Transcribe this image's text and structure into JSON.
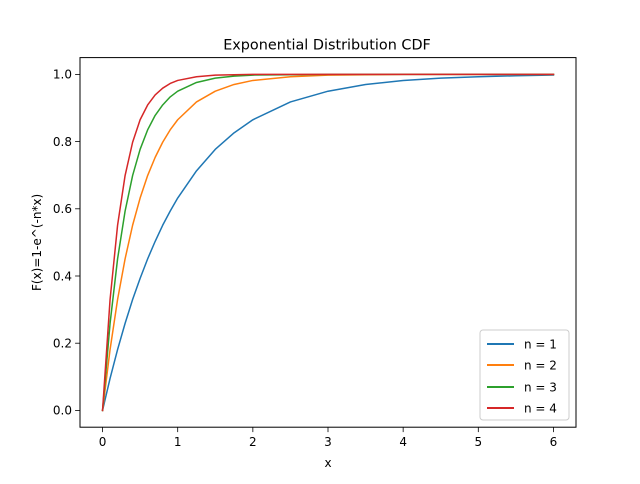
{
  "chart_data": {
    "type": "line",
    "title": "Exponential Distribution CDF",
    "xlabel": "x",
    "ylabel": "F(x)=1-e^(-n*x)",
    "xlim": [
      -0.3,
      6.3
    ],
    "ylim": [
      -0.05,
      1.05
    ],
    "xticks": [
      0,
      1,
      2,
      3,
      4,
      5,
      6
    ],
    "xtick_labels": [
      "0",
      "1",
      "2",
      "3",
      "4",
      "5",
      "6"
    ],
    "yticks": [
      0.0,
      0.2,
      0.4,
      0.6,
      0.8,
      1.0
    ],
    "ytick_labels": [
      "0.0",
      "0.2",
      "0.4",
      "0.6",
      "0.8",
      "1.0"
    ],
    "grid": false,
    "legend_position": "lower right",
    "x": [
      0,
      0.1,
      0.2,
      0.3,
      0.4,
      0.5,
      0.6,
      0.7,
      0.8,
      0.9,
      1.0,
      1.25,
      1.5,
      1.75,
      2.0,
      2.5,
      3.0,
      3.5,
      4.0,
      4.5,
      5.0,
      5.5,
      6.0
    ],
    "series": [
      {
        "name": "n = 1",
        "color": "#1f77b4",
        "values": [
          0.0,
          0.095,
          0.181,
          0.259,
          0.33,
          0.393,
          0.451,
          0.503,
          0.551,
          0.593,
          0.632,
          0.713,
          0.777,
          0.826,
          0.865,
          0.918,
          0.95,
          0.97,
          0.982,
          0.989,
          0.993,
          0.996,
          0.998
        ]
      },
      {
        "name": "n = 2",
        "color": "#ff7f0e",
        "values": [
          0.0,
          0.181,
          0.33,
          0.451,
          0.551,
          0.632,
          0.699,
          0.753,
          0.798,
          0.835,
          0.865,
          0.918,
          0.95,
          0.97,
          0.982,
          0.993,
          0.998,
          0.999,
          1.0,
          1.0,
          1.0,
          1.0,
          1.0
        ]
      },
      {
        "name": "n = 3",
        "color": "#2ca02c",
        "values": [
          0.0,
          0.259,
          0.451,
          0.593,
          0.699,
          0.777,
          0.835,
          0.878,
          0.909,
          0.933,
          0.95,
          0.976,
          0.989,
          0.995,
          0.998,
          0.999,
          1.0,
          1.0,
          1.0,
          1.0,
          1.0,
          1.0,
          1.0
        ]
      },
      {
        "name": "n = 4",
        "color": "#d62728",
        "values": [
          0.0,
          0.33,
          0.551,
          0.699,
          0.798,
          0.865,
          0.909,
          0.939,
          0.959,
          0.973,
          0.982,
          0.993,
          0.998,
          0.999,
          1.0,
          1.0,
          1.0,
          1.0,
          1.0,
          1.0,
          1.0,
          1.0,
          1.0
        ]
      }
    ]
  }
}
